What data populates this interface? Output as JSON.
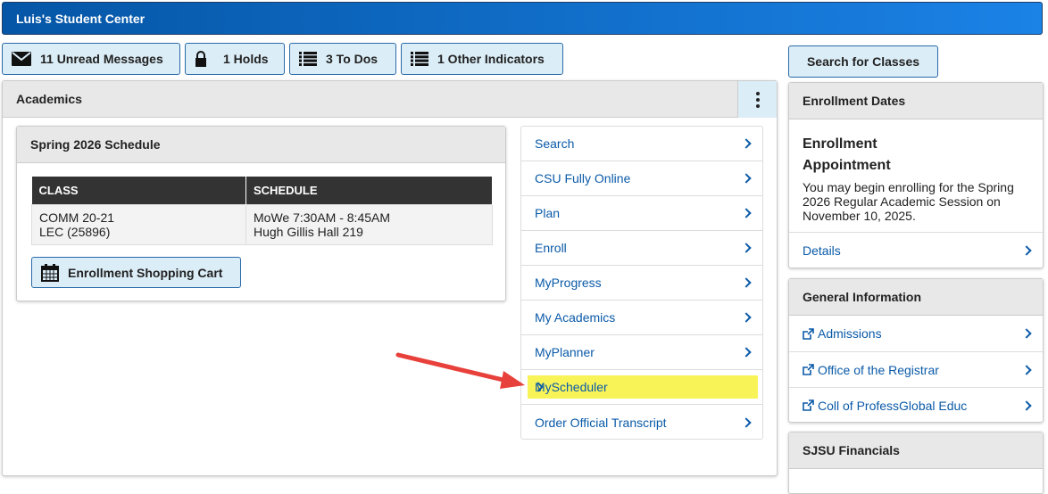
{
  "header": {
    "title": "Luis's Student Center"
  },
  "indicators": [
    {
      "label": "11 Unread Messages",
      "icon": "envelope-icon"
    },
    {
      "label": "1 Holds",
      "icon": "lock-icon"
    },
    {
      "label": "3 To Dos",
      "icon": "list-icon"
    },
    {
      "label": "1 Other Indicators",
      "icon": "list-icon"
    }
  ],
  "academics": {
    "title": "Academics",
    "schedule": {
      "title": "Spring 2026 Schedule",
      "columns": [
        "CLASS",
        "SCHEDULE"
      ],
      "rows": [
        {
          "class_line1": "COMM 20-21",
          "class_line2": "LEC (25896)",
          "schedule_line1": "MoWe 7:30AM - 8:45AM",
          "schedule_line2": "Hugh Gillis Hall 219"
        }
      ],
      "cart_button": "Enrollment Shopping Cart"
    },
    "links": [
      "Search",
      "CSU Fully Online",
      "Plan",
      "Enroll",
      "MyProgress",
      "My Academics",
      "MyPlanner",
      "MyScheduler",
      "Order Official Transcript"
    ],
    "highlighted_link": "MyScheduler",
    "highlight_color": "#f8f458",
    "annotation_arrow_color": "#e8403a"
  },
  "right": {
    "search_button": "Search for Classes",
    "enrollment_dates": {
      "title": "Enrollment Dates",
      "heading_line1": "Enrollment",
      "heading_line2": "Appointment",
      "text": "You may begin enrolling for the Spring 2026 Regular Academic Session on November 10, 2025.",
      "details_link": "Details"
    },
    "general_info": {
      "title": "General Information",
      "links": [
        "Admissions",
        "Office of the Registrar",
        "Coll of ProfessGlobal Educ"
      ]
    },
    "financials": {
      "title": "SJSU Financials"
    }
  },
  "colors": {
    "header_start": "#0556a6",
    "header_end": "#1b82e6",
    "button_bg": "#dbedf7",
    "link": "#0a5aa8"
  }
}
